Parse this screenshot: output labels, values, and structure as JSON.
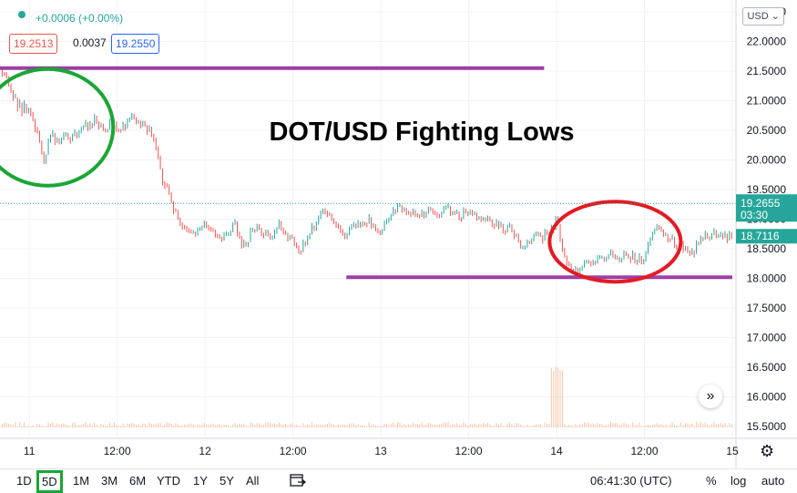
{
  "header": {
    "change": "+0.0006 (+0.00%)",
    "bid": "19.2513",
    "spread": "0.0037",
    "ask": "19.2550",
    "currency": "USD"
  },
  "chart_data": {
    "type": "candlestick",
    "title": "DOT/USD Fighting Lows",
    "ylim": [
      15.3,
      22.7
    ],
    "y_ticks": [
      "22.5000",
      "22.0000",
      "21.5000",
      "21.0000",
      "20.5000",
      "20.0000",
      "19.5000",
      "19.0000",
      "18.5000",
      "18.0000",
      "17.5000",
      "17.0000",
      "16.5000",
      "16.0000",
      "15.5000"
    ],
    "y_tick_values": [
      22.5,
      22.0,
      21.5,
      21.0,
      20.5,
      20.0,
      19.5,
      19.0,
      18.5,
      18.0,
      17.5,
      17.0,
      16.5,
      16.0,
      15.5
    ],
    "x_ticks": [
      "11",
      "12:00",
      "12",
      "12:00",
      "13",
      "12:00",
      "14",
      "12:00",
      "15"
    ],
    "x_tick_hours": [
      0,
      12,
      24,
      36,
      48,
      60,
      72,
      84,
      96
    ],
    "x_range_hours": [
      -4,
      96.5
    ],
    "price_path": [
      [
        -4,
        21.5
      ],
      [
        -3,
        21.3
      ],
      [
        -2,
        21.0
      ],
      [
        -1,
        20.85
      ],
      [
        0,
        20.95
      ],
      [
        1,
        20.5
      ],
      [
        2,
        20.05
      ],
      [
        3,
        20.4
      ],
      [
        4,
        20.3
      ],
      [
        5,
        20.45
      ],
      [
        6,
        20.35
      ],
      [
        7,
        20.55
      ],
      [
        8,
        20.55
      ],
      [
        9,
        20.7
      ],
      [
        10,
        20.55
      ],
      [
        11,
        20.6
      ],
      [
        12,
        20.55
      ],
      [
        13,
        20.6
      ],
      [
        14,
        20.7
      ],
      [
        15,
        20.65
      ],
      [
        16,
        20.55
      ],
      [
        17,
        20.35
      ],
      [
        18,
        19.75
      ],
      [
        19,
        19.4
      ],
      [
        20,
        19.1
      ],
      [
        21,
        18.9
      ],
      [
        22,
        18.75
      ],
      [
        23,
        18.85
      ],
      [
        24,
        18.9
      ],
      [
        25,
        18.8
      ],
      [
        26,
        18.7
      ],
      [
        27,
        18.8
      ],
      [
        28,
        18.95
      ],
      [
        29,
        18.55
      ],
      [
        30,
        18.7
      ],
      [
        31,
        18.85
      ],
      [
        32,
        18.75
      ],
      [
        33,
        18.6
      ],
      [
        34,
        18.9
      ],
      [
        35,
        18.75
      ],
      [
        36,
        18.65
      ],
      [
        37,
        18.5
      ],
      [
        38,
        18.7
      ],
      [
        39,
        18.9
      ],
      [
        40,
        19.2
      ],
      [
        41,
        19.0
      ],
      [
        42,
        18.95
      ],
      [
        43,
        18.7
      ],
      [
        44,
        18.85
      ],
      [
        45,
        18.95
      ],
      [
        46,
        19.0
      ],
      [
        47,
        18.9
      ],
      [
        48,
        18.85
      ],
      [
        49,
        19.0
      ],
      [
        50,
        19.15
      ],
      [
        51,
        19.2
      ],
      [
        52,
        19.1
      ],
      [
        53,
        19.05
      ],
      [
        54,
        19.1
      ],
      [
        55,
        19.15
      ],
      [
        56,
        19.05
      ],
      [
        57,
        19.15
      ],
      [
        58,
        19.1
      ],
      [
        59,
        19.05
      ],
      [
        60,
        19.15
      ],
      [
        61,
        19.05
      ],
      [
        62,
        18.95
      ],
      [
        63,
        19.0
      ],
      [
        64,
        18.9
      ],
      [
        65,
        18.85
      ],
      [
        66,
        18.8
      ],
      [
        67,
        18.55
      ],
      [
        68,
        18.65
      ],
      [
        69,
        18.8
      ],
      [
        70,
        18.7
      ],
      [
        71,
        18.75
      ],
      [
        72,
        18.95
      ],
      [
        73,
        18.4
      ],
      [
        74,
        18.2
      ],
      [
        75,
        18.15
      ],
      [
        76,
        18.2
      ],
      [
        77,
        18.25
      ],
      [
        78,
        18.35
      ],
      [
        79,
        18.4
      ],
      [
        80,
        18.3
      ],
      [
        81,
        18.35
      ],
      [
        82,
        18.4
      ],
      [
        83,
        18.3
      ],
      [
        84,
        18.4
      ],
      [
        85,
        18.8
      ],
      [
        86,
        18.85
      ],
      [
        87,
        18.75
      ],
      [
        88,
        18.6
      ],
      [
        89,
        18.55
      ],
      [
        90,
        18.4
      ],
      [
        91,
        18.5
      ],
      [
        92,
        18.65
      ],
      [
        93,
        18.75
      ],
      [
        94,
        18.7
      ],
      [
        95,
        18.72
      ],
      [
        96,
        18.71
      ]
    ],
    "resistance_level": 21.55,
    "resistance_span_hours": [
      -4,
      70.3
    ],
    "support_level": 18.02,
    "support_span_hours": [
      43.3,
      96
    ],
    "current_price_label": "19.2655",
    "countdown": "03:30",
    "current_price": 19.2655,
    "last_price_label": "18.7116",
    "last_price": 18.7116,
    "colors": {
      "up": "#26a69a",
      "down": "#ef5350",
      "line": "#9c3fa6",
      "green_circle": "#1aa635",
      "red_circle": "#e31b23",
      "volume": "#f5b98e"
    }
  },
  "bottom_bar": {
    "timeframes": [
      "1D",
      "5D",
      "1M",
      "3M",
      "6M",
      "YTD",
      "1Y",
      "5Y",
      "All"
    ],
    "selected": "5D",
    "time": "06:41:30 (UTC)",
    "percent": "%",
    "log": "log",
    "auto": "auto"
  }
}
